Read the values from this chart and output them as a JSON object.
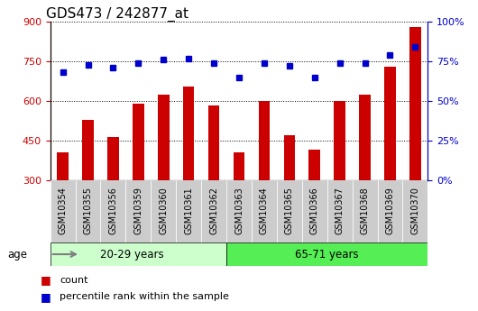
{
  "title": "GDS473 / 242877_at",
  "categories": [
    "GSM10354",
    "GSM10355",
    "GSM10356",
    "GSM10359",
    "GSM10360",
    "GSM10361",
    "GSM10362",
    "GSM10363",
    "GSM10364",
    "GSM10365",
    "GSM10366",
    "GSM10367",
    "GSM10368",
    "GSM10369",
    "GSM10370"
  ],
  "counts": [
    405,
    530,
    465,
    590,
    625,
    655,
    585,
    405,
    600,
    470,
    415,
    600,
    625,
    730,
    880
  ],
  "percentiles": [
    68,
    73,
    71,
    74,
    76,
    77,
    74,
    65,
    74,
    72,
    65,
    74,
    74,
    79,
    84
  ],
  "ylim_left": [
    300,
    900
  ],
  "yticks_left": [
    300,
    450,
    600,
    750,
    900
  ],
  "ylim_right": [
    0,
    100
  ],
  "yticks_right": [
    0,
    25,
    50,
    75,
    100
  ],
  "yticklabels_right": [
    "0%",
    "25%",
    "50%",
    "75%",
    "100%"
  ],
  "bar_color": "#cc0000",
  "dot_color": "#0000cc",
  "bar_width": 0.45,
  "group1_count": 7,
  "group1_label": "20-29 years",
  "group2_label": "65-71 years",
  "group1_bg": "#ccffcc",
  "group2_bg": "#55ee55",
  "age_label": "age",
  "legend_count": "count",
  "legend_pct": "percentile rank within the sample",
  "tick_color_left": "#cc0000",
  "tick_color_right": "#0000cc",
  "xlabel_gray_bg": "#cccccc",
  "title_fontsize": 11,
  "label_fontsize": 8
}
